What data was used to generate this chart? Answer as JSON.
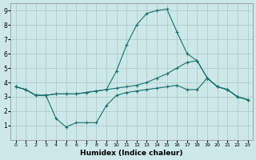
{
  "xlabel": "Humidex (Indice chaleur)",
  "bg_color": "#cde8e8",
  "grid_color": "#b0cccc",
  "line_color": "#1a7070",
  "xlim": [
    -0.5,
    23.5
  ],
  "ylim": [
    0,
    9.5
  ],
  "xticks": [
    0,
    1,
    2,
    3,
    4,
    5,
    6,
    7,
    8,
    9,
    10,
    11,
    12,
    13,
    14,
    15,
    16,
    17,
    18,
    19,
    20,
    21,
    22,
    23
  ],
  "yticks": [
    1,
    2,
    3,
    4,
    5,
    6,
    7,
    8,
    9
  ],
  "line1_x": [
    0,
    1,
    2,
    3,
    4,
    5,
    6,
    7,
    8,
    9,
    10,
    11,
    12,
    13,
    14,
    15,
    16,
    17,
    18,
    19,
    20,
    21,
    22,
    23
  ],
  "line1_y": [
    3.7,
    3.5,
    3.1,
    3.1,
    3.2,
    3.2,
    3.2,
    3.3,
    3.4,
    3.5,
    4.8,
    6.6,
    8.0,
    8.8,
    9.0,
    9.1,
    7.5,
    6.0,
    5.5,
    4.3,
    3.7,
    3.5,
    3.0,
    2.8
  ],
  "line2_x": [
    0,
    1,
    2,
    3,
    4,
    5,
    6,
    7,
    8,
    9,
    10,
    11,
    12,
    13,
    14,
    15,
    16,
    17,
    18,
    19,
    20,
    21,
    22,
    23
  ],
  "line2_y": [
    3.7,
    3.5,
    3.1,
    3.1,
    3.2,
    3.2,
    3.2,
    3.3,
    3.4,
    3.5,
    3.6,
    3.7,
    3.8,
    4.0,
    4.3,
    4.6,
    5.0,
    5.4,
    5.5,
    4.3,
    3.7,
    3.5,
    3.0,
    2.8
  ],
  "line3_x": [
    0,
    1,
    2,
    3,
    4,
    5,
    6,
    7,
    8,
    9,
    10,
    11,
    12,
    13,
    14,
    15,
    16,
    17,
    18,
    19,
    20,
    21,
    22,
    23
  ],
  "line3_y": [
    3.7,
    3.5,
    3.1,
    3.1,
    1.5,
    0.9,
    1.2,
    1.2,
    1.2,
    2.4,
    3.1,
    3.3,
    3.4,
    3.5,
    3.6,
    3.7,
    3.8,
    3.5,
    3.5,
    4.3,
    3.7,
    3.5,
    3.0,
    2.8
  ]
}
